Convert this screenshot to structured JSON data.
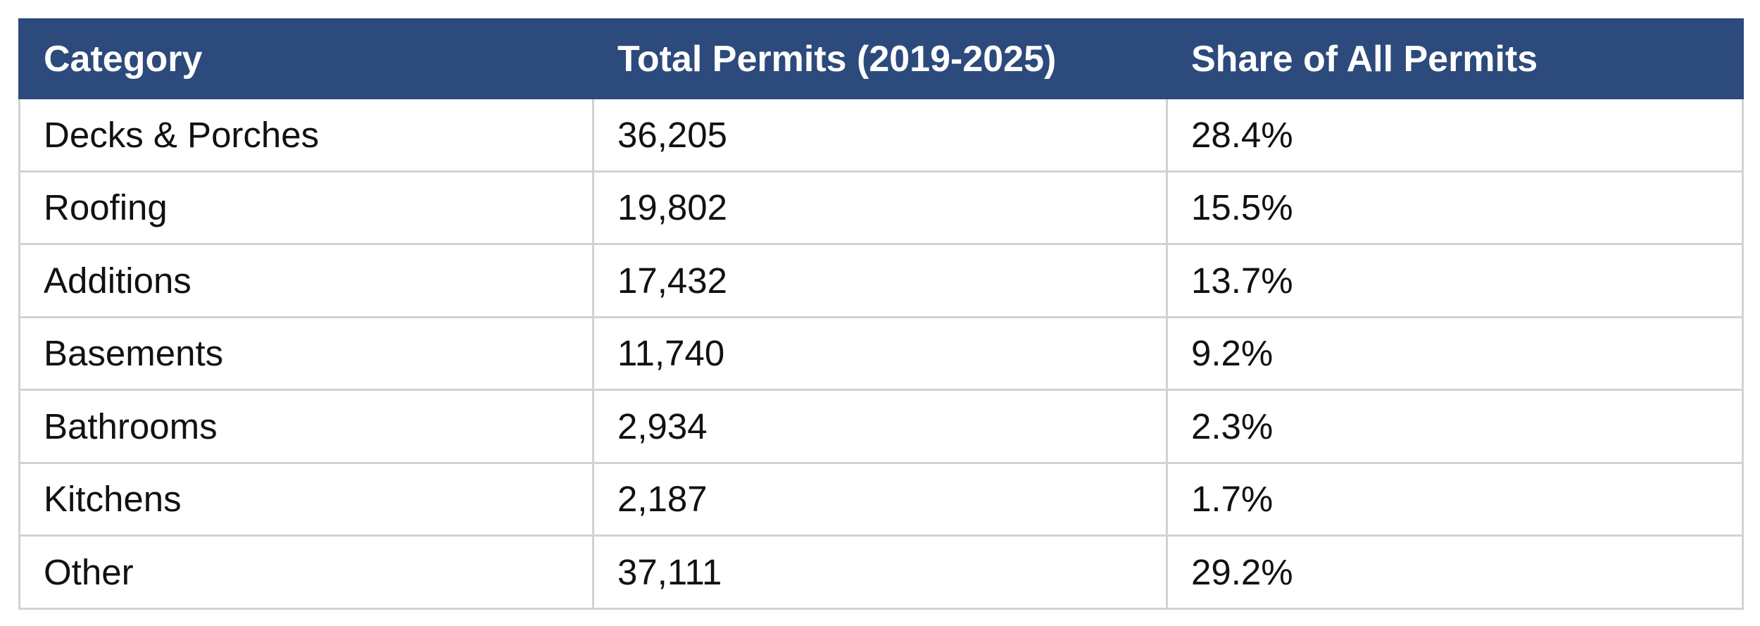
{
  "table": {
    "headers": [
      "Category",
      "Total Permits (2019-2025)",
      "Share of All Permits"
    ],
    "rows": [
      [
        "Decks & Porches",
        "36,205",
        "28.4%"
      ],
      [
        "Roofing",
        "19,802",
        "15.5%"
      ],
      [
        "Additions",
        "17,432",
        "13.7%"
      ],
      [
        "Basements",
        "11,740",
        "9.2%"
      ],
      [
        "Bathrooms",
        "2,934",
        "2.3%"
      ],
      [
        "Kitchens",
        "2,187",
        "1.7%"
      ],
      [
        "Other",
        "37,111",
        "29.2%"
      ]
    ]
  },
  "colors": {
    "header_background": "#2c4a7c",
    "header_text": "#ffffff",
    "grid_lines": "#d2d2d2"
  }
}
